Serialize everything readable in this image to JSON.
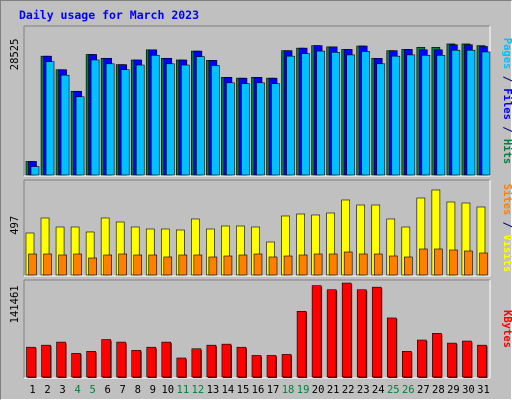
{
  "chart_data": {
    "type": "bar",
    "title": "Daily usage for March 2023",
    "categories": [
      "1",
      "2",
      "3",
      "4",
      "5",
      "6",
      "7",
      "8",
      "9",
      "10",
      "11",
      "12",
      "13",
      "14",
      "15",
      "16",
      "17",
      "18",
      "19",
      "20",
      "21",
      "22",
      "23",
      "24",
      "25",
      "26",
      "27",
      "28",
      "29",
      "30",
      "31"
    ],
    "weekend_days": [
      "4",
      "5",
      "11",
      "12",
      "18",
      "19",
      "25",
      "26"
    ],
    "panels": [
      {
        "name": "pages-files-hits",
        "y_tick_label": "28525",
        "y_tick_value": 28525,
        "ylim": [
          0,
          35000
        ],
        "legend": [
          {
            "text": "Pages",
            "color": "#00c0ff"
          },
          {
            "text": " / ",
            "color": "#000080"
          },
          {
            "text": "Files",
            "color": "#0000ff"
          },
          {
            "text": " / ",
            "color": "#000080"
          },
          {
            "text": "Hits",
            "color": "#008040"
          }
        ],
        "series": [
          {
            "name": "Hits",
            "color": "#008040",
            "values": [
              3200,
              28100,
              24900,
              19800,
              28500,
              27600,
              26100,
              27200,
              29600,
              27600,
              27200,
              29300,
              27100,
              23100,
              22900,
              23100,
              22900,
              29400,
              30000,
              30600,
              30300,
              29700,
              30500,
              27600,
              29400,
              29700,
              30200,
              30200,
              31000,
              31000,
              30600
            ]
          },
          {
            "name": "Files",
            "color": "#0000ff",
            "values": [
              3200,
              28100,
              24900,
              19800,
              28500,
              27600,
              26100,
              27200,
              29600,
              27600,
              27200,
              29300,
              27100,
              23100,
              22900,
              23100,
              22900,
              29400,
              30000,
              30600,
              30300,
              29700,
              30500,
              27600,
              29400,
              29700,
              29600,
              29600,
              30800,
              30800,
              30400
            ]
          },
          {
            "name": "Pages",
            "color": "#00c0ff",
            "values": [
              2000,
              26800,
              23600,
              18500,
              27200,
              26300,
              24900,
              26000,
              28300,
              26300,
              26000,
              28000,
              25900,
              21800,
              21600,
              21800,
              21600,
              28100,
              28700,
              29300,
              29000,
              28400,
              29200,
              26300,
              28100,
              28400,
              28300,
              28300,
              29500,
              29500,
              29100
            ]
          }
        ]
      },
      {
        "name": "visits-sites",
        "y_tick_label": "497",
        "y_tick_value": 497,
        "ylim": [
          0,
          940
        ],
        "legend": [
          {
            "text": "Sites",
            "color": "#ff8000"
          },
          {
            "text": " / ",
            "color": "#000080"
          },
          {
            "text": "Visits",
            "color": "#ffff00"
          }
        ],
        "series": [
          {
            "name": "Visits",
            "color": "#ffff00",
            "values": [
              420,
              570,
              480,
              480,
              430,
              570,
              530,
              480,
              460,
              460,
              450,
              560,
              460,
              490,
              490,
              480,
              330,
              590,
              610,
              600,
              620,
              750,
              700,
              700,
              560,
              480,
              770,
              850,
              730,
              720,
              680
            ]
          },
          {
            "name": "Sites",
            "color": "#ff8000",
            "values": [
              210,
              210,
              200,
              210,
              170,
              200,
              210,
              200,
              200,
              180,
              200,
              200,
              180,
              190,
              200,
              210,
              180,
              190,
              200,
              210,
              210,
              230,
              210,
              210,
              190,
              180,
              260,
              260,
              250,
              240,
              220
            ]
          }
        ]
      },
      {
        "name": "kbytes",
        "y_tick_label": "141461",
        "y_tick_value": 141461,
        "ylim": [
          0,
          187000
        ],
        "legend": [
          {
            "text": "KBytes",
            "color": "#ff0000"
          }
        ],
        "series": [
          {
            "name": "KBytes",
            "color": "#ff0000",
            "values": [
              58000,
              62000,
              68000,
              46000,
              50000,
              73000,
              68000,
              52000,
              58000,
              68000,
              37000,
              55000,
              62000,
              64000,
              58000,
              42000,
              42000,
              44000,
              128000,
              178000,
              170000,
              183000,
              170000,
              175000,
              115000,
              50000,
              72000,
              85000,
              66000,
              70000,
              62000
            ]
          }
        ]
      }
    ]
  },
  "colors": {
    "background": "#c0c0c0",
    "weekday_label": "#000000",
    "weekend_label": "#008040",
    "title": "#0000ff"
  }
}
